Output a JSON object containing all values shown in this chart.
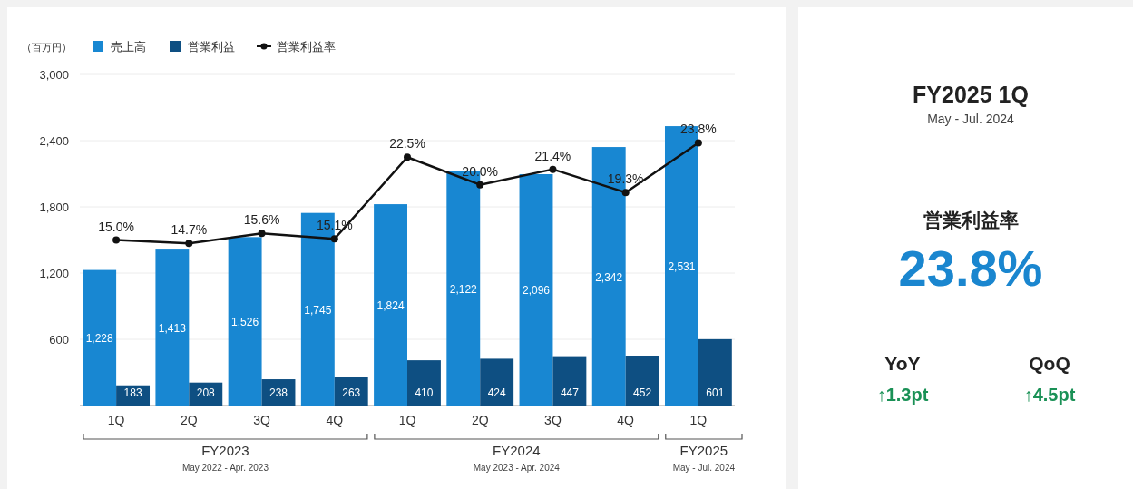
{
  "chart_data": [
    {
      "type": "bar",
      "ylabel": "（百万円）",
      "categories": [
        "1Q",
        "2Q",
        "3Q",
        "4Q",
        "1Q",
        "2Q",
        "3Q",
        "4Q",
        "1Q"
      ],
      "series": [
        {
          "name": "売上高",
          "color": "#1887d2",
          "values": [
            1228,
            1413,
            1526,
            1745,
            1824,
            2122,
            2096,
            2342,
            2531
          ],
          "value_labels": [
            "1,228",
            "1,413",
            "1,526",
            "1,745",
            "1,824",
            "2,122",
            "2,096",
            "2,342",
            "2,531"
          ]
        },
        {
          "name": "営業利益",
          "color": "#0e4f82",
          "values": [
            183,
            208,
            238,
            263,
            410,
            424,
            447,
            452,
            601
          ],
          "value_labels": [
            "183",
            "208",
            "238",
            "263",
            "410",
            "424",
            "447",
            "452",
            "601"
          ]
        },
        {
          "name": "営業利益率",
          "type": "line",
          "axis": "y2",
          "color": "#111111",
          "marker": "circle",
          "values": [
            15.0,
            14.7,
            15.6,
            15.1,
            22.5,
            20.0,
            21.4,
            19.3,
            23.8
          ],
          "value_labels": [
            "15.0%",
            "14.7%",
            "15.6%",
            "15.1%",
            "22.5%",
            "20.0%",
            "21.4%",
            "19.3%",
            "23.8%"
          ]
        }
      ],
      "ylim": [
        0,
        3000
      ],
      "yticks": [
        {
          "value": 600,
          "label": "600"
        },
        {
          "value": 1200,
          "label": "1,200"
        },
        {
          "value": 1800,
          "label": "1,800"
        },
        {
          "value": 2400,
          "label": "2,400"
        },
        {
          "value": 3000,
          "label": "3,000"
        }
      ],
      "y2lim": [
        0,
        30
      ],
      "grid": "y",
      "legend": "top left",
      "annotations": [
        "FY2023",
        "May 2022 - Apr. 2023",
        "FY2024",
        "May 2023 - Apr. 2024",
        "FY2025",
        "May - Jul. 2024"
      ]
    },
    {
      "type": "other",
      "title": "FY2025 1Q",
      "subtitle": "May - Jul. 2024",
      "annotations": [
        "営業利益率",
        "23.8%",
        "YoY",
        "↑1.3pt",
        "QoQ",
        "↑4.5pt"
      ]
    }
  ]
}
